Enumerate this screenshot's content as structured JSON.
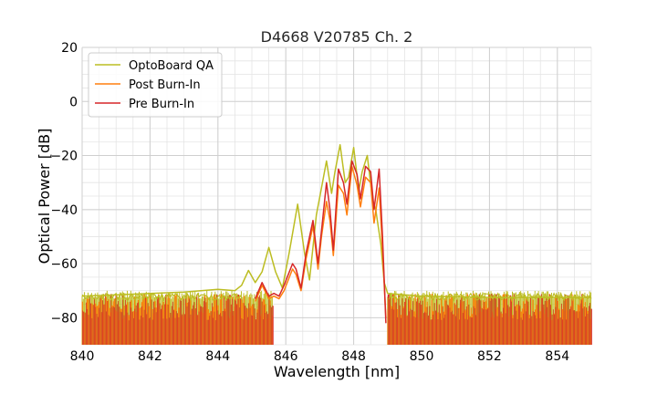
{
  "chart_data": {
    "type": "line",
    "title": "D4668 V20785 Ch. 2",
    "xlabel": "Wavelength [nm]",
    "ylabel": "Optical Power [dB]",
    "xlim": [
      840,
      855
    ],
    "ylim": [
      -90,
      20
    ],
    "xticks": [
      "840",
      "842",
      "844",
      "846",
      "848",
      "850",
      "852",
      "854"
    ],
    "yticks": [
      "20",
      "0",
      "−20",
      "−40",
      "−60",
      "−80"
    ],
    "grid": true,
    "legend_position": "top-left",
    "noise_floor": {
      "min_db": -90,
      "max_db": -70,
      "lower_band_end_nm": 845.6,
      "upper_band_start_nm": 849.0
    },
    "series": [
      {
        "name": "OptoBoard QA",
        "color": "#bcbd22",
        "points": [
          [
            840.0,
            -72
          ],
          [
            841.0,
            -71.5
          ],
          [
            842.0,
            -71
          ],
          [
            843.0,
            -70.5
          ],
          [
            844.0,
            -69.5
          ],
          [
            844.5,
            -70
          ],
          [
            844.7,
            -68
          ],
          [
            844.9,
            -62.5
          ],
          [
            845.1,
            -67
          ],
          [
            845.3,
            -63
          ],
          [
            845.5,
            -54
          ],
          [
            845.7,
            -63
          ],
          [
            845.9,
            -69
          ],
          [
            846.1,
            -56
          ],
          [
            846.35,
            -38
          ],
          [
            846.55,
            -56
          ],
          [
            846.7,
            -66
          ],
          [
            846.9,
            -42
          ],
          [
            847.05,
            -32
          ],
          [
            847.2,
            -22
          ],
          [
            847.35,
            -34
          ],
          [
            847.45,
            -26
          ],
          [
            847.6,
            -16
          ],
          [
            847.75,
            -30
          ],
          [
            847.85,
            -28
          ],
          [
            848.0,
            -17
          ],
          [
            848.15,
            -33
          ],
          [
            848.25,
            -26
          ],
          [
            848.4,
            -20
          ],
          [
            848.55,
            -36
          ],
          [
            848.65,
            -40
          ],
          [
            848.8,
            -53
          ],
          [
            848.9,
            -67
          ],
          [
            849.0,
            -71
          ],
          [
            850.0,
            -72
          ],
          [
            852.0,
            -72.5
          ],
          [
            855.0,
            -72.5
          ]
        ]
      },
      {
        "name": "Post Burn-In",
        "color": "#ff7f0e",
        "points": [
          [
            845.1,
            -74
          ],
          [
            845.3,
            -68
          ],
          [
            845.5,
            -73
          ],
          [
            845.65,
            -72
          ],
          [
            845.8,
            -73
          ],
          [
            845.95,
            -70
          ],
          [
            846.2,
            -62
          ],
          [
            846.3,
            -64
          ],
          [
            846.45,
            -70
          ],
          [
            846.6,
            -58
          ],
          [
            846.8,
            -46
          ],
          [
            846.95,
            -62
          ],
          [
            847.05,
            -50
          ],
          [
            847.2,
            -37
          ],
          [
            847.3,
            -44
          ],
          [
            847.4,
            -57
          ],
          [
            847.55,
            -31
          ],
          [
            847.7,
            -34
          ],
          [
            847.8,
            -42
          ],
          [
            847.95,
            -24
          ],
          [
            848.1,
            -31
          ],
          [
            848.2,
            -39
          ],
          [
            848.35,
            -28
          ],
          [
            848.5,
            -30
          ],
          [
            848.6,
            -45
          ],
          [
            848.75,
            -32
          ],
          [
            848.85,
            -55
          ],
          [
            848.95,
            -80
          ]
        ]
      },
      {
        "name": "Pre Burn-In",
        "color": "#d62728",
        "points": [
          [
            845.1,
            -73
          ],
          [
            845.3,
            -67
          ],
          [
            845.5,
            -72
          ],
          [
            845.65,
            -71
          ],
          [
            845.8,
            -72
          ],
          [
            845.95,
            -68
          ],
          [
            846.2,
            -60
          ],
          [
            846.3,
            -62
          ],
          [
            846.45,
            -69
          ],
          [
            846.6,
            -56
          ],
          [
            846.8,
            -44
          ],
          [
            846.95,
            -60
          ],
          [
            847.05,
            -48
          ],
          [
            847.2,
            -30
          ],
          [
            847.3,
            -40
          ],
          [
            847.4,
            -55
          ],
          [
            847.55,
            -25
          ],
          [
            847.7,
            -30
          ],
          [
            847.8,
            -38
          ],
          [
            847.95,
            -22
          ],
          [
            848.1,
            -27
          ],
          [
            848.2,
            -36
          ],
          [
            848.35,
            -24
          ],
          [
            848.5,
            -26
          ],
          [
            848.6,
            -40
          ],
          [
            848.75,
            -25
          ],
          [
            848.85,
            -50
          ],
          [
            848.95,
            -82
          ]
        ]
      }
    ]
  }
}
